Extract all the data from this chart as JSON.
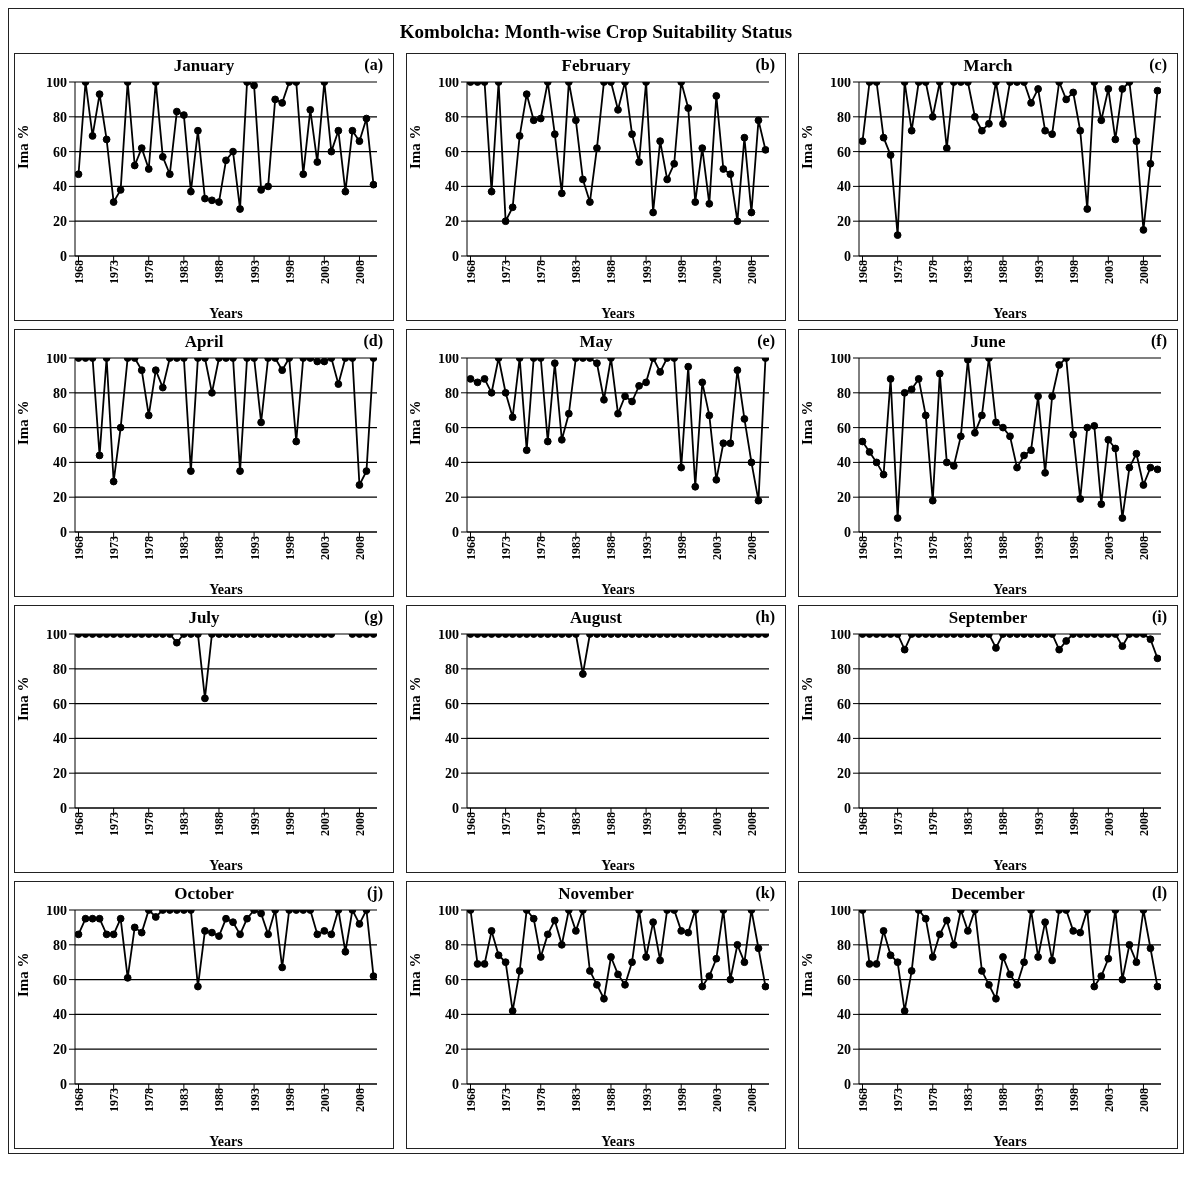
{
  "chart_data": [
    {
      "type": "line",
      "title": "January",
      "xlabel": "Years",
      "ylabel": "Ima %",
      "annotations": [
        "(a)",
        "Kombolcha: Month-wise Crop Suitability Status"
      ],
      "x": [
        1968,
        1969,
        1970,
        1971,
        1972,
        1973,
        1974,
        1975,
        1976,
        1977,
        1978,
        1979,
        1980,
        1981,
        1982,
        1983,
        1984,
        1985,
        1986,
        1987,
        1988,
        1989,
        1990,
        1991,
        1992,
        1993,
        1994,
        1995,
        1996,
        1997,
        1998,
        1999,
        2000,
        2001,
        2002,
        2003,
        2004,
        2005,
        2006,
        2007,
        2008,
        2009,
        2010
      ],
      "xlim": [
        1967.5,
        2010.5
      ],
      "xticks": [
        1968,
        1973,
        1978,
        1983,
        1988,
        1993,
        1998,
        2003,
        2008
      ],
      "ylim": [
        0,
        100
      ],
      "yticks": [
        0,
        20,
        40,
        60,
        80,
        100
      ],
      "grid": "y",
      "marker": "circle",
      "line_style": "solid",
      "series": [
        {
          "color": "#000000",
          "values": [
            47,
            100,
            69,
            93,
            67,
            31,
            38,
            100,
            52,
            62,
            50,
            100,
            57,
            47,
            83,
            81,
            37,
            72,
            33,
            32,
            31,
            55,
            60,
            27,
            100,
            98,
            38,
            40,
            90,
            88,
            100,
            100,
            47,
            84,
            54,
            100,
            60,
            72,
            37,
            72,
            66,
            79,
            41
          ]
        }
      ]
    },
    {
      "type": "line",
      "title": "February",
      "xlabel": "Years",
      "ylabel": "Ima %",
      "annotations": [
        "(b)"
      ],
      "x": [
        1968,
        1969,
        1970,
        1971,
        1972,
        1973,
        1974,
        1975,
        1976,
        1977,
        1978,
        1979,
        1980,
        1981,
        1982,
        1983,
        1984,
        1985,
        1986,
        1987,
        1988,
        1989,
        1990,
        1991,
        1992,
        1993,
        1994,
        1995,
        1996,
        1997,
        1998,
        1999,
        2000,
        2001,
        2002,
        2003,
        2004,
        2005,
        2006,
        2007,
        2008,
        2009,
        2010
      ],
      "xlim": [
        1967.5,
        2010.5
      ],
      "xticks": [
        1968,
        1973,
        1978,
        1983,
        1988,
        1993,
        1998,
        2003,
        2008
      ],
      "ylim": [
        0,
        100
      ],
      "yticks": [
        0,
        20,
        40,
        60,
        80,
        100
      ],
      "grid": "y",
      "marker": "circle",
      "line_style": "solid",
      "series": [
        {
          "color": "#000000",
          "values": [
            100,
            100,
            100,
            37,
            100,
            20,
            28,
            69,
            93,
            78,
            79,
            100,
            70,
            36,
            100,
            78,
            44,
            31,
            62,
            100,
            100,
            84,
            100,
            70,
            54,
            100,
            25,
            66,
            44,
            53,
            100,
            85,
            31,
            62,
            30,
            92,
            50,
            47,
            20,
            68,
            25,
            78,
            61
          ]
        }
      ]
    },
    {
      "type": "line",
      "title": "March",
      "xlabel": "Years",
      "ylabel": "Ima %",
      "annotations": [
        "(c)"
      ],
      "x": [
        1968,
        1969,
        1970,
        1971,
        1972,
        1973,
        1974,
        1975,
        1976,
        1977,
        1978,
        1979,
        1980,
        1981,
        1982,
        1983,
        1984,
        1985,
        1986,
        1987,
        1988,
        1989,
        1990,
        1991,
        1992,
        1993,
        1994,
        1995,
        1996,
        1997,
        1998,
        1999,
        2000,
        2001,
        2002,
        2003,
        2004,
        2005,
        2006,
        2007,
        2008,
        2009,
        2010
      ],
      "xlim": [
        1967.5,
        2010.5
      ],
      "xticks": [
        1968,
        1973,
        1978,
        1983,
        1988,
        1993,
        1998,
        2003,
        2008
      ],
      "ylim": [
        0,
        100
      ],
      "yticks": [
        0,
        20,
        40,
        60,
        80,
        100
      ],
      "grid": "y",
      "marker": "circle",
      "line_style": "solid",
      "series": [
        {
          "color": "#000000",
          "values": [
            66,
            100,
            100,
            68,
            58,
            12,
            100,
            72,
            100,
            100,
            80,
            100,
            62,
            100,
            100,
            100,
            80,
            72,
            76,
            100,
            76,
            100,
            100,
            100,
            88,
            96,
            72,
            70,
            100,
            90,
            94,
            72,
            27,
            100,
            78,
            96,
            67,
            96,
            100,
            66,
            15,
            53,
            95
          ]
        }
      ]
    },
    {
      "type": "line",
      "title": "April",
      "xlabel": "Years",
      "ylabel": "Ima %",
      "annotations": [
        "(d)"
      ],
      "x": [
        1968,
        1969,
        1970,
        1971,
        1972,
        1973,
        1974,
        1975,
        1976,
        1977,
        1978,
        1979,
        1980,
        1981,
        1982,
        1983,
        1984,
        1985,
        1986,
        1987,
        1988,
        1989,
        1990,
        1991,
        1992,
        1993,
        1994,
        1995,
        1996,
        1997,
        1998,
        1999,
        2000,
        2001,
        2002,
        2003,
        2004,
        2005,
        2006,
        2007,
        2008,
        2009,
        2010
      ],
      "xlim": [
        1967.5,
        2010.5
      ],
      "xticks": [
        1968,
        1973,
        1978,
        1983,
        1988,
        1993,
        1998,
        2003,
        2008
      ],
      "ylim": [
        0,
        100
      ],
      "yticks": [
        0,
        20,
        40,
        60,
        80,
        100
      ],
      "grid": "y",
      "marker": "circle",
      "line_style": "solid",
      "series": [
        {
          "color": "#000000",
          "values": [
            100,
            100,
            100,
            44,
            100,
            29,
            60,
            100,
            100,
            93,
            67,
            93,
            83,
            100,
            100,
            100,
            35,
            100,
            100,
            80,
            100,
            100,
            100,
            35,
            100,
            100,
            63,
            100,
            100,
            93,
            100,
            52,
            100,
            100,
            98,
            98,
            100,
            85,
            100,
            100,
            27,
            35,
            100
          ]
        }
      ]
    },
    {
      "type": "line",
      "title": "May",
      "xlabel": "Years",
      "ylabel": "Ima %",
      "annotations": [
        "(e)"
      ],
      "x": [
        1968,
        1969,
        1970,
        1971,
        1972,
        1973,
        1974,
        1975,
        1976,
        1977,
        1978,
        1979,
        1980,
        1981,
        1982,
        1983,
        1984,
        1985,
        1986,
        1987,
        1988,
        1989,
        1990,
        1991,
        1992,
        1993,
        1994,
        1995,
        1996,
        1997,
        1998,
        1999,
        2000,
        2001,
        2002,
        2003,
        2004,
        2005,
        2006,
        2007,
        2008,
        2009,
        2010
      ],
      "xlim": [
        1967.5,
        2010.5
      ],
      "xticks": [
        1968,
        1973,
        1978,
        1983,
        1988,
        1993,
        1998,
        2003,
        2008
      ],
      "ylim": [
        0,
        100
      ],
      "yticks": [
        0,
        20,
        40,
        60,
        80,
        100
      ],
      "grid": "y",
      "marker": "circle",
      "line_style": "solid",
      "series": [
        {
          "color": "#000000",
          "values": [
            88,
            86,
            88,
            80,
            100,
            80,
            66,
            100,
            47,
            100,
            100,
            52,
            97,
            53,
            68,
            100,
            100,
            100,
            97,
            76,
            100,
            68,
            78,
            75,
            84,
            86,
            100,
            92,
            100,
            100,
            37,
            95,
            26,
            86,
            67,
            30,
            51,
            51,
            93,
            65,
            40,
            18,
            100
          ]
        }
      ]
    },
    {
      "type": "line",
      "title": "June",
      "xlabel": "Years",
      "ylabel": "Ima %",
      "annotations": [
        "(f)"
      ],
      "x": [
        1968,
        1969,
        1970,
        1971,
        1972,
        1973,
        1974,
        1975,
        1976,
        1977,
        1978,
        1979,
        1980,
        1981,
        1982,
        1983,
        1984,
        1985,
        1986,
        1987,
        1988,
        1989,
        1990,
        1991,
        1992,
        1993,
        1994,
        1995,
        1996,
        1997,
        1998,
        1999,
        2000,
        2001,
        2002,
        2003,
        2004,
        2005,
        2006,
        2007,
        2008,
        2009,
        2010
      ],
      "xlim": [
        1967.5,
        2010.5
      ],
      "xticks": [
        1968,
        1973,
        1978,
        1983,
        1988,
        1993,
        1998,
        2003,
        2008
      ],
      "ylim": [
        0,
        100
      ],
      "yticks": [
        0,
        20,
        40,
        60,
        80,
        100
      ],
      "grid": "y",
      "marker": "circle",
      "line_style": "solid",
      "series": [
        {
          "color": "#000000",
          "values": [
            52,
            46,
            40,
            33,
            88,
            8,
            80,
            82,
            88,
            67,
            18,
            91,
            40,
            38,
            55,
            99,
            57,
            67,
            100,
            63,
            60,
            55,
            37,
            44,
            47,
            78,
            34,
            78,
            96,
            100,
            56,
            19,
            60,
            61,
            16,
            53,
            48,
            8,
            37,
            45,
            27,
            37,
            36
          ]
        }
      ]
    },
    {
      "type": "line",
      "title": "July",
      "xlabel": "Years",
      "ylabel": "Ima %",
      "annotations": [
        "(g)"
      ],
      "x": [
        1968,
        1969,
        1970,
        1971,
        1972,
        1973,
        1974,
        1975,
        1976,
        1977,
        1978,
        1979,
        1980,
        1981,
        1982,
        1983,
        1984,
        1985,
        1986,
        1987,
        1988,
        1989,
        1990,
        1991,
        1992,
        1993,
        1994,
        1995,
        1996,
        1997,
        1998,
        1999,
        2000,
        2001,
        2002,
        2003,
        2004,
        2005,
        2006,
        2007,
        2008,
        2009,
        2010
      ],
      "xlim": [
        1967.5,
        2010.5
      ],
      "xticks": [
        1968,
        1973,
        1978,
        1983,
        1988,
        1993,
        1998,
        2003,
        2008
      ],
      "ylim": [
        0,
        100
      ],
      "yticks": [
        0,
        20,
        40,
        60,
        80,
        100
      ],
      "grid": "y",
      "marker": "circle",
      "line_style": "solid",
      "series": [
        {
          "color": "#000000",
          "values": [
            100,
            100,
            100,
            100,
            100,
            100,
            100,
            100,
            100,
            100,
            100,
            100,
            100,
            100,
            95,
            100,
            100,
            100,
            63,
            100,
            100,
            100,
            100,
            100,
            100,
            100,
            100,
            100,
            100,
            100,
            100,
            100,
            100,
            100,
            100,
            100,
            100,
            null,
            null,
            100,
            100,
            100,
            100
          ]
        }
      ]
    },
    {
      "type": "line",
      "title": "August",
      "xlabel": "Years",
      "ylabel": "Ima %",
      "annotations": [
        "(h)"
      ],
      "x": [
        1968,
        1969,
        1970,
        1971,
        1972,
        1973,
        1974,
        1975,
        1976,
        1977,
        1978,
        1979,
        1980,
        1981,
        1982,
        1983,
        1984,
        1985,
        1986,
        1987,
        1988,
        1989,
        1990,
        1991,
        1992,
        1993,
        1994,
        1995,
        1996,
        1997,
        1998,
        1999,
        2000,
        2001,
        2002,
        2003,
        2004,
        2005,
        2006,
        2007,
        2008,
        2009,
        2010
      ],
      "xlim": [
        1967.5,
        2010.5
      ],
      "xticks": [
        1968,
        1973,
        1978,
        1983,
        1988,
        1993,
        1998,
        2003,
        2008
      ],
      "ylim": [
        0,
        100
      ],
      "yticks": [
        0,
        20,
        40,
        60,
        80,
        100
      ],
      "grid": "y",
      "marker": "circle",
      "line_style": "solid",
      "series": [
        {
          "color": "#000000",
          "values": [
            100,
            100,
            100,
            100,
            100,
            100,
            100,
            100,
            100,
            100,
            100,
            100,
            100,
            100,
            100,
            100,
            77,
            100,
            100,
            100,
            100,
            100,
            100,
            100,
            100,
            100,
            100,
            100,
            100,
            100,
            100,
            100,
            100,
            100,
            100,
            100,
            100,
            100,
            100,
            100,
            100,
            100,
            100
          ]
        }
      ]
    },
    {
      "type": "line",
      "title": "September",
      "xlabel": "Years",
      "ylabel": "Ima %",
      "annotations": [
        "(i)"
      ],
      "x": [
        1968,
        1969,
        1970,
        1971,
        1972,
        1973,
        1974,
        1975,
        1976,
        1977,
        1978,
        1979,
        1980,
        1981,
        1982,
        1983,
        1984,
        1985,
        1986,
        1987,
        1988,
        1989,
        1990,
        1991,
        1992,
        1993,
        1994,
        1995,
        1996,
        1997,
        1998,
        1999,
        2000,
        2001,
        2002,
        2003,
        2004,
        2005,
        2006,
        2007,
        2008,
        2009,
        2010
      ],
      "xlim": [
        1967.5,
        2010.5
      ],
      "xticks": [
        1968,
        1973,
        1978,
        1983,
        1988,
        1993,
        1998,
        2003,
        2008
      ],
      "ylim": [
        0,
        100
      ],
      "yticks": [
        0,
        20,
        40,
        60,
        80,
        100
      ],
      "grid": "y",
      "marker": "circle",
      "line_style": "solid",
      "series": [
        {
          "color": "#000000",
          "values": [
            100,
            100,
            100,
            100,
            100,
            100,
            91,
            100,
            100,
            100,
            100,
            100,
            100,
            100,
            100,
            100,
            100,
            100,
            100,
            92,
            100,
            100,
            100,
            100,
            100,
            100,
            100,
            100,
            91,
            96,
            100,
            100,
            100,
            100,
            100,
            100,
            100,
            93,
            100,
            100,
            100,
            97,
            86
          ]
        }
      ]
    },
    {
      "type": "line",
      "title": "October",
      "xlabel": "Years",
      "ylabel": "Ima %",
      "annotations": [
        "(j)"
      ],
      "x": [
        1968,
        1969,
        1970,
        1971,
        1972,
        1973,
        1974,
        1975,
        1976,
        1977,
        1978,
        1979,
        1980,
        1981,
        1982,
        1983,
        1984,
        1985,
        1986,
        1987,
        1988,
        1989,
        1990,
        1991,
        1992,
        1993,
        1994,
        1995,
        1996,
        1997,
        1998,
        1999,
        2000,
        2001,
        2002,
        2003,
        2004,
        2005,
        2006,
        2007,
        2008,
        2009,
        2010
      ],
      "xlim": [
        1967.5,
        2010.5
      ],
      "xticks": [
        1968,
        1973,
        1978,
        1983,
        1988,
        1993,
        1998,
        2003,
        2008
      ],
      "ylim": [
        0,
        100
      ],
      "yticks": [
        0,
        20,
        40,
        60,
        80,
        100
      ],
      "grid": "y",
      "marker": "circle",
      "line_style": "solid",
      "series": [
        {
          "color": "#000000",
          "values": [
            86,
            95,
            95,
            95,
            86,
            86,
            95,
            61,
            90,
            87,
            100,
            96,
            100,
            100,
            100,
            100,
            100,
            56,
            88,
            87,
            85,
            95,
            93,
            86,
            95,
            100,
            98,
            86,
            100,
            67,
            100,
            100,
            100,
            100,
            86,
            88,
            86,
            100,
            76,
            100,
            92,
            100,
            62
          ]
        }
      ]
    },
    {
      "type": "line",
      "title": "November",
      "xlabel": "Years",
      "ylabel": "Ima %",
      "annotations": [
        "(k)"
      ],
      "x": [
        1968,
        1969,
        1970,
        1971,
        1972,
        1973,
        1974,
        1975,
        1976,
        1977,
        1978,
        1979,
        1980,
        1981,
        1982,
        1983,
        1984,
        1985,
        1986,
        1987,
        1988,
        1989,
        1990,
        1991,
        1992,
        1993,
        1994,
        1995,
        1996,
        1997,
        1998,
        1999,
        2000,
        2001,
        2002,
        2003,
        2004,
        2005,
        2006,
        2007,
        2008,
        2009,
        2010
      ],
      "xlim": [
        1967.5,
        2010.5
      ],
      "xticks": [
        1968,
        1973,
        1978,
        1983,
        1988,
        1993,
        1998,
        2003,
        2008
      ],
      "ylim": [
        0,
        100
      ],
      "yticks": [
        0,
        20,
        40,
        60,
        80,
        100
      ],
      "grid": "y",
      "marker": "circle",
      "line_style": "solid",
      "series": [
        {
          "color": "#000000",
          "values": [
            100,
            69,
            69,
            88,
            74,
            70,
            42,
            65,
            100,
            95,
            73,
            86,
            94,
            80,
            100,
            88,
            100,
            65,
            57,
            49,
            73,
            63,
            57,
            70,
            100,
            73,
            93,
            71,
            100,
            100,
            88,
            87,
            100,
            56,
            62,
            72,
            100,
            60,
            80,
            70,
            100,
            78,
            56
          ]
        }
      ]
    },
    {
      "type": "line",
      "title": "December",
      "xlabel": "Years",
      "ylabel": "Ima %",
      "annotations": [
        "(l)"
      ],
      "x": [
        1968,
        1969,
        1970,
        1971,
        1972,
        1973,
        1974,
        1975,
        1976,
        1977,
        1978,
        1979,
        1980,
        1981,
        1982,
        1983,
        1984,
        1985,
        1986,
        1987,
        1988,
        1989,
        1990,
        1991,
        1992,
        1993,
        1994,
        1995,
        1996,
        1997,
        1998,
        1999,
        2000,
        2001,
        2002,
        2003,
        2004,
        2005,
        2006,
        2007,
        2008,
        2009,
        2010
      ],
      "xlim": [
        1967.5,
        2010.5
      ],
      "xticks": [
        1968,
        1973,
        1978,
        1983,
        1988,
        1993,
        1998,
        2003,
        2008
      ],
      "ylim": [
        0,
        100
      ],
      "yticks": [
        0,
        20,
        40,
        60,
        80,
        100
      ],
      "grid": "y",
      "marker": "circle",
      "line_style": "solid",
      "series": [
        {
          "color": "#000000",
          "values": [
            100,
            69,
            69,
            88,
            74,
            70,
            42,
            65,
            100,
            95,
            73,
            86,
            94,
            80,
            100,
            88,
            100,
            65,
            57,
            49,
            73,
            63,
            57,
            70,
            100,
            73,
            93,
            71,
            100,
            100,
            88,
            87,
            100,
            56,
            62,
            72,
            100,
            60,
            80,
            70,
            100,
            78,
            56
          ]
        }
      ]
    }
  ]
}
